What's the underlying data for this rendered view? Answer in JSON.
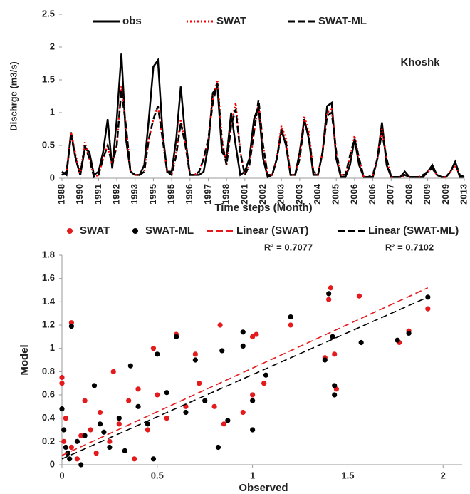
{
  "chart_data": [
    {
      "type": "line",
      "y_label": "Dischrge (m3/s)",
      "x_label": "Time steps (Month)",
      "annotation": "Khoshk",
      "categories": [
        "1988",
        null,
        null,
        null,
        "1990",
        null,
        null,
        null,
        "1991",
        null,
        null,
        null,
        "1992",
        null,
        null,
        null,
        "1993",
        null,
        null,
        null,
        "1995",
        null,
        null,
        null,
        "1995",
        null,
        null,
        null,
        "1996",
        null,
        null,
        null,
        "1997",
        null,
        null,
        null,
        "1998",
        null,
        null,
        null,
        "2001",
        null,
        null,
        null,
        "2002",
        null,
        null,
        null,
        "2003",
        null,
        null,
        null,
        "2003",
        null,
        null,
        null,
        "2004",
        null,
        null,
        null,
        "2005",
        null,
        null,
        null,
        "2006",
        null,
        null,
        null,
        "2006",
        null,
        null,
        null,
        "2007",
        null,
        null,
        null,
        "2008",
        null,
        null,
        null,
        "2009",
        null,
        null,
        null,
        "2009",
        null,
        null,
        null,
        "2013"
      ],
      "ylim": [
        0,
        2.5
      ],
      "yticks": [
        0,
        0.5,
        1,
        1.5,
        2,
        2.5
      ],
      "series": [
        {
          "name": "obs",
          "color": "#000000",
          "style": "solid",
          "values": [
            0.1,
            0.05,
            0.7,
            0.3,
            0.05,
            0.45,
            0.4,
            0.05,
            0.1,
            0.4,
            0.9,
            0.15,
            0.9,
            1.9,
            0.6,
            0.1,
            0.05,
            0.05,
            0.2,
            0.9,
            1.7,
            1.8,
            0.7,
            0.1,
            0.1,
            0.6,
            1.4,
            0.6,
            0.05,
            0.05,
            0.05,
            0.1,
            0.5,
            1.3,
            1.4,
            0.4,
            0.3,
            1.0,
            0.5,
            0.05,
            0.1,
            0.3,
            0.9,
            1.1,
            0.3,
            0.02,
            0.05,
            0.3,
            0.75,
            0.5,
            0.05,
            0.05,
            0.4,
            0.9,
            0.6,
            0.05,
            0.05,
            0.4,
            1.1,
            1.15,
            0.3,
            0.02,
            0.02,
            0.2,
            0.6,
            0.2,
            0.02,
            0.02,
            0.02,
            0.3,
            0.85,
            0.2,
            0.02,
            0.02,
            0.02,
            0.1,
            0.02,
            0.02,
            0.02,
            0.02,
            0.1,
            0.2,
            0.05,
            0.02,
            0.02,
            0.1,
            0.25,
            0.02,
            0.02
          ]
        },
        {
          "name": "SWAT",
          "color": "#ff0000",
          "style": "dotted",
          "values": [
            0.05,
            0.1,
            0.7,
            0.35,
            0.05,
            0.55,
            0.3,
            0.02,
            0.05,
            0.3,
            0.5,
            0.2,
            0.5,
            1.4,
            0.8,
            0.1,
            0.05,
            0.05,
            0.1,
            0.6,
            0.9,
            1.1,
            0.6,
            0.1,
            0.05,
            0.4,
            0.9,
            0.5,
            0.05,
            0.05,
            0.1,
            0.3,
            0.6,
            1.2,
            1.5,
            0.6,
            0.2,
            0.8,
            1.15,
            0.4,
            0.05,
            0.2,
            0.7,
            1.15,
            0.5,
            0.05,
            0.05,
            0.3,
            0.8,
            0.6,
            0.05,
            0.05,
            0.3,
            0.95,
            0.7,
            0.1,
            0.05,
            0.4,
            1.0,
            1.05,
            0.4,
            0.05,
            0.05,
            0.3,
            0.65,
            0.3,
            0.02,
            0.02,
            0.05,
            0.3,
            0.75,
            0.3,
            0.02,
            0.02,
            0.02,
            0.05,
            0.02,
            0.02,
            0.02,
            0.05,
            0.1,
            0.15,
            0.05,
            0.02,
            0.02,
            0.1,
            0.2,
            0.05,
            0.02
          ]
        },
        {
          "name": "SWAT-ML",
          "color": "#000000",
          "style": "dashed",
          "values": [
            0.05,
            0.1,
            0.65,
            0.3,
            0.05,
            0.5,
            0.3,
            0.02,
            0.05,
            0.3,
            0.5,
            0.2,
            0.5,
            1.35,
            0.8,
            0.1,
            0.05,
            0.05,
            0.1,
            0.6,
            0.9,
            1.1,
            0.6,
            0.1,
            0.05,
            0.35,
            0.85,
            0.5,
            0.05,
            0.05,
            0.1,
            0.3,
            0.6,
            1.15,
            1.45,
            0.55,
            0.2,
            0.8,
            1.05,
            0.4,
            0.05,
            0.2,
            0.7,
            1.2,
            0.5,
            0.05,
            0.05,
            0.3,
            0.7,
            0.55,
            0.05,
            0.05,
            0.3,
            0.85,
            0.65,
            0.1,
            0.05,
            0.4,
            0.95,
            1.0,
            0.4,
            0.05,
            0.05,
            0.35,
            0.6,
            0.3,
            0.02,
            0.02,
            0.05,
            0.3,
            0.7,
            0.3,
            0.02,
            0.02,
            0.02,
            0.05,
            0.02,
            0.02,
            0.02,
            0.05,
            0.1,
            0.15,
            0.05,
            0.02,
            0.02,
            0.1,
            0.25,
            0.05,
            0.02
          ]
        }
      ]
    },
    {
      "type": "scatter",
      "y_label": "Model",
      "x_label": "Observed",
      "xlim": [
        0,
        2.1
      ],
      "xticks": [
        0,
        0.5,
        1,
        1.5,
        2
      ],
      "ylim": [
        0,
        1.8
      ],
      "yticks": [
        0,
        0.2,
        0.4,
        0.6,
        0.8,
        1,
        1.2,
        1.4,
        1.6,
        1.8
      ],
      "annotations": [
        "R² = 0.7077",
        "R² = 0.7102"
      ],
      "series": [
        {
          "name": "SWAT",
          "color": "#e41a1c",
          "type": "scatter",
          "x": [
            0,
            0,
            0.02,
            0.05,
            0.01,
            0.03,
            0.05,
            0.1,
            0.15,
            0.2,
            0.25,
            0.3,
            0.35,
            0.4,
            0.45,
            0.48,
            0.5,
            0.55,
            0.6,
            0.65,
            0.7,
            0.72,
            0.8,
            0.83,
            0.85,
            0.95,
            1.0,
            1.0,
            1.02,
            1.06,
            1.2,
            1.38,
            1.4,
            1.41,
            1.43,
            1.44,
            1.56,
            1.77,
            1.82,
            1.92,
            0.08,
            0.12,
            0.18,
            0.27,
            0.38
          ],
          "values": [
            0.7,
            0.75,
            0.4,
            1.22,
            0.2,
            0.1,
            0.15,
            0.25,
            0.3,
            0.45,
            0.2,
            0.35,
            0.55,
            0.65,
            0.3,
            1.0,
            0.6,
            0.4,
            1.12,
            0.5,
            0.95,
            0.7,
            0.5,
            1.2,
            0.35,
            0.45,
            1.1,
            0.6,
            1.12,
            0.7,
            1.2,
            0.92,
            1.42,
            1.52,
            0.95,
            0.65,
            1.45,
            1.05,
            1.15,
            1.34,
            0.05,
            0.55,
            0.1,
            0.8,
            0.05
          ]
        },
        {
          "name": "SWAT-ML",
          "color": "#000000",
          "type": "scatter",
          "x": [
            0,
            0.01,
            0.05,
            0.02,
            0.04,
            0.08,
            0.12,
            0.17,
            0.2,
            0.25,
            0.3,
            0.36,
            0.4,
            0.45,
            0.48,
            0.5,
            0.55,
            0.6,
            0.65,
            0.7,
            0.75,
            0.82,
            0.84,
            0.87,
            0.95,
            0.95,
            1.0,
            1.0,
            1.07,
            1.2,
            1.38,
            1.4,
            1.42,
            1.43,
            1.43,
            1.57,
            1.76,
            1.82,
            1.92,
            0.03,
            0.1,
            0.22,
            0.33
          ],
          "values": [
            0.48,
            0.3,
            1.19,
            0.15,
            0.05,
            0.2,
            0.25,
            0.68,
            0.35,
            0.15,
            0.4,
            0.85,
            0.5,
            0.35,
            0.05,
            0.95,
            0.62,
            1.1,
            0.45,
            0.9,
            0.55,
            0.15,
            0.98,
            0.38,
            1.14,
            1.02,
            0.3,
            0.55,
            0.77,
            1.27,
            0.9,
            1.47,
            1.1,
            0.68,
            0.6,
            1.05,
            1.07,
            1.13,
            1.44,
            0.1,
            0.0,
            0.28,
            0.12
          ]
        },
        {
          "name": "Linear (SWAT)",
          "color": "#e41a1c",
          "type": "line",
          "style": "dashed",
          "x": [
            0,
            1.92
          ],
          "values": [
            0.08,
            1.52
          ]
        },
        {
          "name": "Linear (SWAT-ML)",
          "color": "#000000",
          "type": "line",
          "style": "dashed",
          "x": [
            0,
            1.92
          ],
          "values": [
            0.05,
            1.44
          ]
        }
      ]
    }
  ]
}
